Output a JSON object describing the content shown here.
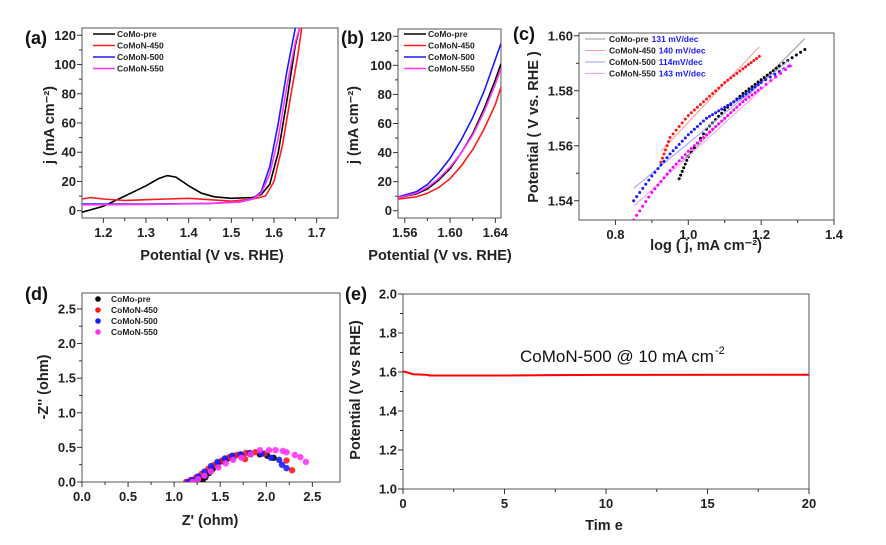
{
  "chart_data": [
    {
      "id": "a",
      "panel_label": "(a)",
      "type": "line",
      "xlabel": "Potential (V vs. RHE)",
      "ylabel": "j (mA cm⁻²)",
      "xlim": [
        1.15,
        1.75
      ],
      "ylim": [
        -5,
        125
      ],
      "xticks": [
        "1.2",
        "1.3",
        "1.4",
        "1.5",
        "1.6",
        "1.7"
      ],
      "yticks": [
        "0",
        "20",
        "40",
        "60",
        "80",
        "100",
        "120"
      ],
      "legend": "top-left",
      "series": [
        {
          "name": "CoMo-pre",
          "color": "#000000",
          "points": [
            [
              1.15,
              -1
            ],
            [
              1.2,
              3
            ],
            [
              1.25,
              10
            ],
            [
              1.3,
              17
            ],
            [
              1.33,
              22
            ],
            [
              1.35,
              24
            ],
            [
              1.37,
              23
            ],
            [
              1.4,
              17
            ],
            [
              1.43,
              12
            ],
            [
              1.46,
              9.5
            ],
            [
              1.5,
              8.5
            ],
            [
              1.55,
              9
            ],
            [
              1.57,
              11
            ],
            [
              1.59,
              18
            ],
            [
              1.61,
              40
            ],
            [
              1.63,
              75
            ],
            [
              1.65,
              113
            ],
            [
              1.66,
              125
            ]
          ]
        },
        {
          "name": "CoMoN-450",
          "color": "#ff1a1a",
          "points": [
            [
              1.15,
              8
            ],
            [
              1.17,
              9
            ],
            [
              1.2,
              8
            ],
            [
              1.25,
              7
            ],
            [
              1.3,
              7.5
            ],
            [
              1.35,
              8
            ],
            [
              1.4,
              8.5
            ],
            [
              1.45,
              7.5
            ],
            [
              1.5,
              6.5
            ],
            [
              1.55,
              8
            ],
            [
              1.58,
              10
            ],
            [
              1.6,
              20
            ],
            [
              1.62,
              45
            ],
            [
              1.64,
              80
            ],
            [
              1.655,
              105
            ],
            [
              1.665,
              125
            ]
          ]
        },
        {
          "name": "CoMoN-500",
          "color": "#1a1aff",
          "points": [
            [
              1.15,
              4.5
            ],
            [
              1.3,
              4.5
            ],
            [
              1.45,
              5
            ],
            [
              1.52,
              6
            ],
            [
              1.55,
              8
            ],
            [
              1.57,
              13
            ],
            [
              1.59,
              30
            ],
            [
              1.61,
              60
            ],
            [
              1.63,
              95
            ],
            [
              1.65,
              125
            ]
          ]
        },
        {
          "name": "CoMoN-550",
          "color": "#ff33ff",
          "points": [
            [
              1.15,
              4
            ],
            [
              1.3,
              4.3
            ],
            [
              1.45,
              5
            ],
            [
              1.52,
              6
            ],
            [
              1.55,
              8
            ],
            [
              1.57,
              12
            ],
            [
              1.59,
              25
            ],
            [
              1.61,
              50
            ],
            [
              1.63,
              85
            ],
            [
              1.65,
              115
            ],
            [
              1.66,
              125
            ]
          ]
        }
      ]
    },
    {
      "id": "b",
      "panel_label": "(b)",
      "type": "line",
      "xlabel": "Potential (V vs. RHE)",
      "ylabel": "j (mA cm⁻²)",
      "xlim": [
        1.554,
        1.645
      ],
      "ylim": [
        -5,
        125
      ],
      "xticks": [
        "1.56",
        "1.60",
        "1.64"
      ],
      "yticks": [
        "0",
        "20",
        "40",
        "60",
        "80",
        "100",
        "120"
      ],
      "legend": "top-left",
      "series": [
        {
          "name": "CoMo-pre",
          "color": "#000000",
          "points": [
            [
              1.554,
              9
            ],
            [
              1.57,
              11.5
            ],
            [
              1.58,
              15
            ],
            [
              1.59,
              21
            ],
            [
              1.6,
              29
            ],
            [
              1.61,
              40
            ],
            [
              1.62,
              53
            ],
            [
              1.63,
              70
            ],
            [
              1.64,
              90
            ],
            [
              1.645,
              101
            ]
          ]
        },
        {
          "name": "CoMoN-450",
          "color": "#ff1a1a",
          "points": [
            [
              1.554,
              8
            ],
            [
              1.57,
              9.5
            ],
            [
              1.58,
              12
            ],
            [
              1.59,
              16
            ],
            [
              1.6,
              22
            ],
            [
              1.61,
              31
            ],
            [
              1.62,
              42
            ],
            [
              1.63,
              56
            ],
            [
              1.64,
              73
            ],
            [
              1.645,
              85
            ]
          ]
        },
        {
          "name": "CoMoN-500",
          "color": "#1a1aff",
          "points": [
            [
              1.554,
              9.5
            ],
            [
              1.57,
              13
            ],
            [
              1.58,
              18
            ],
            [
              1.59,
              26
            ],
            [
              1.6,
              36
            ],
            [
              1.61,
              49
            ],
            [
              1.62,
              64
            ],
            [
              1.63,
              82
            ],
            [
              1.64,
              104
            ],
            [
              1.645,
              115
            ]
          ]
        },
        {
          "name": "CoMoN-550",
          "color": "#ff33ff",
          "points": [
            [
              1.554,
              9
            ],
            [
              1.57,
              12
            ],
            [
              1.58,
              16
            ],
            [
              1.59,
              22
            ],
            [
              1.6,
              30
            ],
            [
              1.61,
              40
            ],
            [
              1.62,
              52
            ],
            [
              1.63,
              68
            ],
            [
              1.64,
              87
            ],
            [
              1.645,
              98
            ]
          ]
        }
      ]
    },
    {
      "id": "c",
      "panel_label": "(c)",
      "type": "scatter",
      "xlabel": "log ( j, mA cm⁻²)",
      "ylabel": "Potential ( V vs. RHE )",
      "xlim": [
        0.7,
        1.4
      ],
      "ylim": [
        1.533,
        1.601
      ],
      "xticks": [
        "0.8",
        "1.0",
        "1.2",
        "1.4"
      ],
      "yticks": [
        "1.54",
        "1.56",
        "1.58",
        "1.60"
      ],
      "legend": "top-left",
      "series": [
        {
          "name": "CoMo-pre",
          "slope": "131 mV/dec",
          "color": "#000000",
          "fit_color": "#999999",
          "fit": [
            [
              0.98,
              1.554
            ],
            [
              1.32,
              1.599
            ]
          ],
          "points": [
            [
              0.975,
              1.548
            ],
            [
              1.0,
              1.556
            ],
            [
              1.05,
              1.566
            ],
            [
              1.1,
              1.573
            ],
            [
              1.15,
              1.579
            ],
            [
              1.2,
              1.584
            ],
            [
              1.25,
              1.589
            ],
            [
              1.32,
              1.595
            ]
          ]
        },
        {
          "name": "CoMoN-450",
          "slope": "140 mV/dec",
          "color": "#ff1a1a",
          "fit_color": "#ff9999",
          "fit": [
            [
              0.925,
              1.558
            ],
            [
              1.195,
              1.596
            ]
          ],
          "points": [
            [
              0.925,
              1.554
            ],
            [
              0.95,
              1.563
            ],
            [
              1.0,
              1.571
            ],
            [
              1.05,
              1.577
            ],
            [
              1.1,
              1.583
            ],
            [
              1.15,
              1.588
            ],
            [
              1.195,
              1.5925
            ]
          ]
        },
        {
          "name": "CoMoN-500",
          "slope": "114mV/dec",
          "color": "#1a1aff",
          "fit_color": "#9999ff",
          "fit": [
            [
              0.85,
              1.5445
            ],
            [
              1.275,
              1.591
            ]
          ],
          "points": [
            [
              0.85,
              1.54
            ],
            [
              0.9,
              1.549
            ],
            [
              0.95,
              1.557
            ],
            [
              1.0,
              1.564
            ],
            [
              1.05,
              1.57
            ],
            [
              1.1,
              1.574
            ],
            [
              1.15,
              1.578
            ],
            [
              1.2,
              1.583
            ],
            [
              1.275,
              1.589
            ]
          ]
        },
        {
          "name": "CoMoN-550",
          "slope": "143 mV/dec",
          "color": "#ff00ff",
          "fit_color": "#ff99ff",
          "fit": [
            [
              0.85,
              1.538
            ],
            [
              1.28,
              1.59
            ]
          ],
          "points": [
            [
              0.85,
              1.533
            ],
            [
              0.9,
              1.543
            ],
            [
              0.95,
              1.551
            ],
            [
              1.0,
              1.558
            ],
            [
              1.05,
              1.564
            ],
            [
              1.1,
              1.57
            ],
            [
              1.15,
              1.576
            ],
            [
              1.2,
              1.581
            ],
            [
              1.28,
              1.589
            ]
          ]
        }
      ]
    },
    {
      "id": "d",
      "panel_label": "(d)",
      "type": "scatter",
      "xlabel": "Z' (ohm)",
      "ylabel": "-Z'' (ohm)",
      "xlim": [
        0,
        2.8
      ],
      "ylim": [
        0,
        2.73
      ],
      "xticks": [
        "0.0",
        "0.5",
        "1.0",
        "1.5",
        "2.0",
        "2.5"
      ],
      "yticks": [
        "0.0",
        "0.5",
        "1.0",
        "1.5",
        "2.0",
        "2.5"
      ],
      "legend": "top-left",
      "series": [
        {
          "name": "CoMo-pre",
          "color": "#000000",
          "points": [
            [
              1.25,
              0
            ],
            [
              1.28,
              0.01
            ],
            [
              1.31,
              0.03
            ],
            [
              1.34,
              0.07
            ],
            [
              1.38,
              0.13
            ],
            [
              1.42,
              0.19
            ],
            [
              1.47,
              0.25
            ],
            [
              1.52,
              0.3
            ],
            [
              1.58,
              0.34
            ],
            [
              1.65,
              0.37
            ],
            [
              1.73,
              0.39
            ],
            [
              1.83,
              0.4
            ],
            [
              1.93,
              0.4
            ],
            [
              2.01,
              0.38
            ],
            [
              2.08,
              0.35
            ]
          ]
        },
        {
          "name": "CoMoN-450",
          "color": "#ff1a1a",
          "points": [
            [
              1.13,
              0
            ],
            [
              1.18,
              0.03
            ],
            [
              1.24,
              0.07
            ],
            [
              1.3,
              0.12
            ],
            [
              1.37,
              0.19
            ],
            [
              1.44,
              0.25
            ],
            [
              1.52,
              0.31
            ],
            [
              1.6,
              0.36
            ],
            [
              1.68,
              0.39
            ],
            [
              1.77,
              0.33
            ],
            [
              1.78,
              0.42
            ],
            [
              1.88,
              0.43
            ],
            [
              1.98,
              0.41
            ],
            [
              2.22,
              0.31
            ],
            [
              2.28,
              0.17
            ]
          ]
        },
        {
          "name": "CoMoN-500",
          "color": "#1a1aff",
          "points": [
            [
              1.15,
              0
            ],
            [
              1.2,
              0.03
            ],
            [
              1.26,
              0.08
            ],
            [
              1.33,
              0.15
            ],
            [
              1.4,
              0.23
            ],
            [
              1.47,
              0.29
            ],
            [
              1.55,
              0.34
            ],
            [
              1.63,
              0.38
            ],
            [
              1.72,
              0.4
            ],
            [
              1.82,
              0.42
            ],
            [
              1.95,
              0.41
            ],
            [
              2.05,
              0.35
            ],
            [
              2.14,
              0.32
            ],
            [
              2.17,
              0.25
            ],
            [
              2.22,
              0.2
            ]
          ]
        },
        {
          "name": "CoMoN-550",
          "color": "#ff33ff",
          "points": [
            [
              1.2,
              0
            ],
            [
              1.26,
              0.04
            ],
            [
              1.33,
              0.09
            ],
            [
              1.4,
              0.15
            ],
            [
              1.48,
              0.21
            ],
            [
              1.56,
              0.27
            ],
            [
              1.64,
              0.32
            ],
            [
              1.73,
              0.35
            ],
            [
              1.83,
              0.4
            ],
            [
              1.93,
              0.46
            ],
            [
              2.03,
              0.46
            ],
            [
              2.1,
              0.46
            ],
            [
              2.18,
              0.45
            ],
            [
              2.22,
              0.43
            ],
            [
              2.31,
              0.39
            ],
            [
              2.37,
              0.36
            ],
            [
              2.43,
              0.29
            ]
          ]
        }
      ]
    },
    {
      "id": "e",
      "panel_label": "(e)",
      "type": "line",
      "xlabel": "Tim e",
      "ylabel": "Potential (V vs RHE)",
      "xlim": [
        0,
        20
      ],
      "ylim": [
        1.0,
        2.0
      ],
      "xticks": [
        "0",
        "5",
        "10",
        "15",
        "20"
      ],
      "yticks": [
        "1.0",
        "1.2",
        "1.4",
        "1.6",
        "1.8",
        "2.0"
      ],
      "annotation": "CoMoN-500 @ 10 mA cm",
      "annotation_sup": "-2",
      "series": [
        {
          "color": "#ff0000",
          "points": [
            [
              0,
              1.603
            ],
            [
              0.3,
              1.595
            ],
            [
              0.5,
              1.588
            ],
            [
              1.2,
              1.585
            ],
            [
              1.3,
              1.582
            ],
            [
              5,
              1.582
            ],
            [
              7.5,
              1.584
            ],
            [
              10,
              1.585
            ],
            [
              20,
              1.586
            ]
          ]
        }
      ]
    }
  ]
}
